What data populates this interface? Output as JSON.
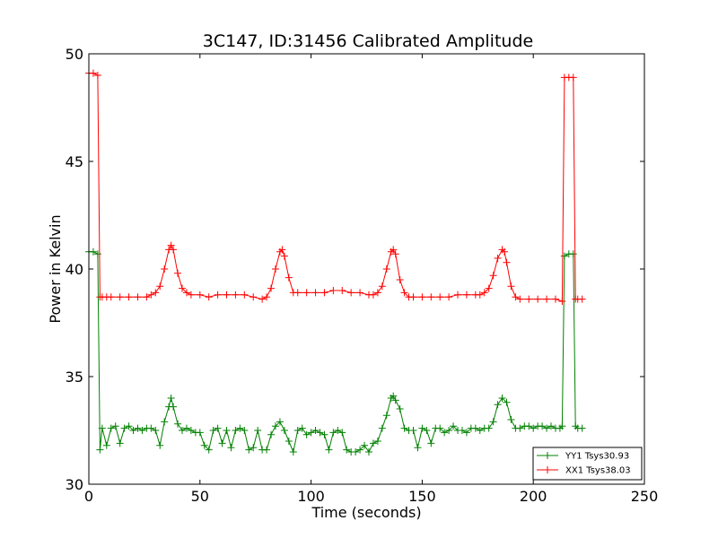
{
  "chart_data": {
    "type": "line",
    "title": "3C147, ID:31456 Calibrated Amplitude",
    "xlabel": "Time (seconds)",
    "ylabel": "Power in Kelvin",
    "xlim": [
      0,
      250
    ],
    "ylim": [
      30,
      50
    ],
    "xticks": [
      "0",
      "50",
      "100",
      "150",
      "200",
      "250"
    ],
    "yticks": [
      "30",
      "35",
      "40",
      "45",
      "50"
    ],
    "grid": false,
    "legend_position": "bottom-right",
    "marker": "plus",
    "series": [
      {
        "name": "YY1 Tsys30.93",
        "color": "#008000",
        "x": [
          0,
          2,
          4,
          5,
          6,
          8,
          10,
          12,
          14,
          16,
          18,
          20,
          22,
          24,
          26,
          28,
          30,
          32,
          34,
          36,
          37,
          38,
          40,
          42,
          44,
          46,
          48,
          50,
          52,
          54,
          56,
          58,
          60,
          62,
          64,
          66,
          68,
          70,
          72,
          74,
          76,
          78,
          80,
          82,
          84,
          86,
          88,
          90,
          92,
          94,
          96,
          98,
          100,
          102,
          104,
          106,
          108,
          110,
          112,
          114,
          116,
          118,
          120,
          122,
          124,
          126,
          128,
          130,
          132,
          134,
          136,
          137,
          138,
          140,
          142,
          144,
          146,
          148,
          150,
          152,
          154,
          156,
          158,
          160,
          162,
          164,
          166,
          168,
          170,
          172,
          174,
          176,
          178,
          180,
          182,
          184,
          186,
          188,
          190,
          192,
          194,
          196,
          198,
          200,
          202,
          204,
          206,
          208,
          210,
          212,
          213,
          214,
          216,
          218,
          219,
          220,
          222
        ],
        "y": [
          40.8,
          40.8,
          40.7,
          31.6,
          32.6,
          31.8,
          32.6,
          32.7,
          31.9,
          32.6,
          32.7,
          32.5,
          32.6,
          32.5,
          32.6,
          32.6,
          32.5,
          31.8,
          32.9,
          33.6,
          34.0,
          33.6,
          32.8,
          32.5,
          32.6,
          32.5,
          32.4,
          32.4,
          31.8,
          31.6,
          32.5,
          32.6,
          31.9,
          32.5,
          31.7,
          32.5,
          32.6,
          32.5,
          31.6,
          31.7,
          32.5,
          31.6,
          31.6,
          32.3,
          32.7,
          32.9,
          32.5,
          32.0,
          31.5,
          32.5,
          32.6,
          32.3,
          32.4,
          32.5,
          32.4,
          32.3,
          31.6,
          32.4,
          32.5,
          32.4,
          31.6,
          31.5,
          31.5,
          31.6,
          31.8,
          31.5,
          31.9,
          32.0,
          32.6,
          33.2,
          34.0,
          34.1,
          33.9,
          33.5,
          32.6,
          32.5,
          32.5,
          31.7,
          32.6,
          32.5,
          31.9,
          32.6,
          32.6,
          32.4,
          32.5,
          32.7,
          32.5,
          32.5,
          32.4,
          32.6,
          32.6,
          32.5,
          32.6,
          32.6,
          32.9,
          33.7,
          34.0,
          33.8,
          33.0,
          32.6,
          32.6,
          32.7,
          32.7,
          32.6,
          32.7,
          32.7,
          32.6,
          32.7,
          32.6,
          32.6,
          32.7,
          40.6,
          40.7,
          40.7,
          32.7,
          32.6,
          32.6
        ]
      },
      {
        "name": "XX1 Tsys38.03",
        "color": "#ff0000",
        "x": [
          0,
          2,
          4,
          5,
          6,
          8,
          10,
          14,
          18,
          22,
          26,
          28,
          30,
          32,
          34,
          36,
          37,
          38,
          40,
          42,
          44,
          46,
          50,
          54,
          58,
          62,
          66,
          70,
          74,
          78,
          80,
          82,
          84,
          86,
          87,
          88,
          90,
          92,
          94,
          98,
          102,
          106,
          110,
          114,
          118,
          122,
          126,
          128,
          130,
          132,
          134,
          136,
          137,
          138,
          140,
          142,
          144,
          146,
          150,
          154,
          158,
          162,
          166,
          170,
          174,
          176,
          178,
          180,
          182,
          184,
          186,
          187,
          188,
          190,
          192,
          194,
          198,
          202,
          206,
          210,
          213,
          214,
          216,
          218,
          219,
          220,
          222
        ],
        "y": [
          49.1,
          49.1,
          49.0,
          38.7,
          38.7,
          38.7,
          38.7,
          38.7,
          38.7,
          38.7,
          38.7,
          38.8,
          38.9,
          39.2,
          40.0,
          40.9,
          41.1,
          40.9,
          39.8,
          39.1,
          38.9,
          38.8,
          38.8,
          38.7,
          38.8,
          38.8,
          38.8,
          38.8,
          38.7,
          38.6,
          38.7,
          39.1,
          40.0,
          40.8,
          40.9,
          40.6,
          39.6,
          38.9,
          38.9,
          38.9,
          38.9,
          38.9,
          39.0,
          39.0,
          38.9,
          38.9,
          38.8,
          38.8,
          38.9,
          39.2,
          40.0,
          40.8,
          40.9,
          40.7,
          39.5,
          38.9,
          38.7,
          38.7,
          38.7,
          38.7,
          38.7,
          38.7,
          38.8,
          38.8,
          38.8,
          38.8,
          38.9,
          39.1,
          39.7,
          40.5,
          40.9,
          40.8,
          40.3,
          39.2,
          38.7,
          38.6,
          38.6,
          38.6,
          38.6,
          38.6,
          38.5,
          48.9,
          48.9,
          48.9,
          38.6,
          38.6,
          38.6
        ]
      }
    ]
  }
}
